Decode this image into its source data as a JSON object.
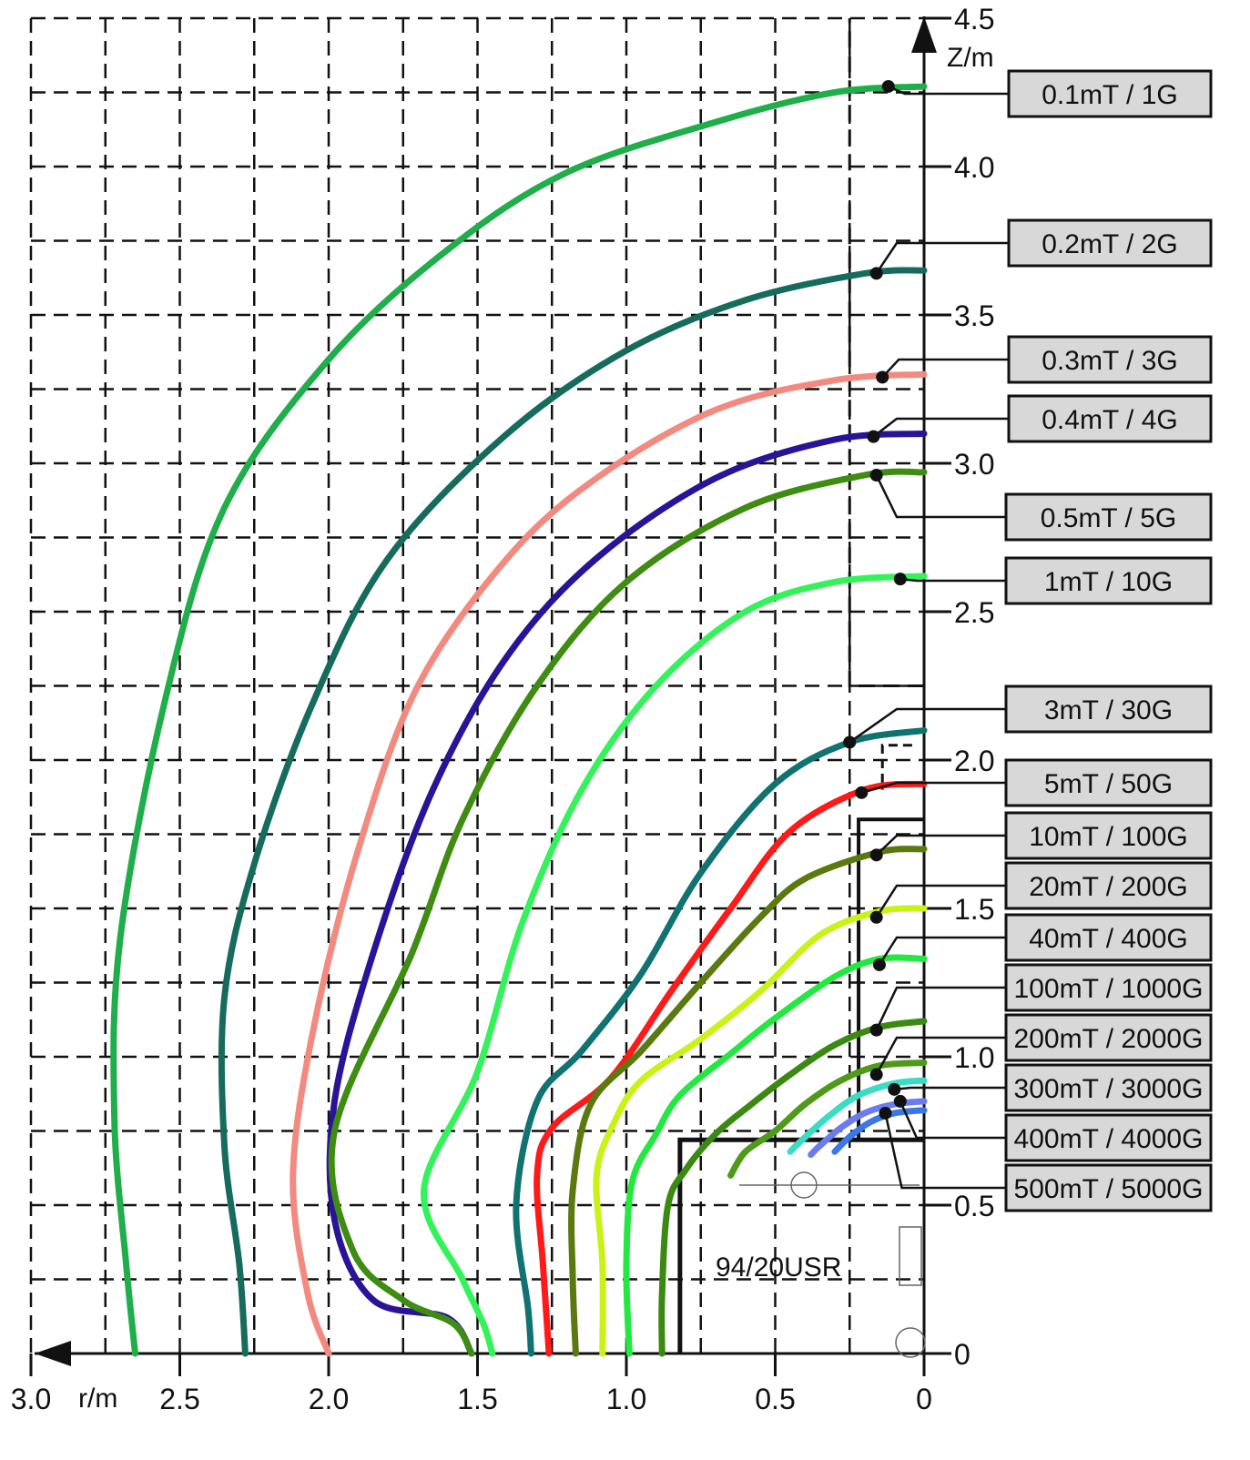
{
  "chart_data": {
    "type": "line",
    "title": "",
    "xlabel": "r/m",
    "ylabel": "Z/m",
    "xlim": [
      3.0,
      0
    ],
    "ylim": [
      0,
      4.5
    ],
    "x_ticks": [
      "3.0",
      "2.5",
      "2.0",
      "1.5",
      "1.0",
      "0.5",
      "0"
    ],
    "y_ticks": [
      "0",
      "0.5",
      "1.0",
      "1.5",
      "2.0",
      "2.5",
      "3.0",
      "3.5",
      "4.0",
      "4.5"
    ],
    "grid": true,
    "magnet_label": "94/20USR",
    "series": [
      {
        "name": "0.1mT / 1G",
        "color": "#1fae4a",
        "points": [
          [
            0,
            4.27
          ],
          [
            0.3,
            4.25
          ],
          [
            0.7,
            4.15
          ],
          [
            1.2,
            3.98
          ],
          [
            1.6,
            3.72
          ],
          [
            2.0,
            3.35
          ],
          [
            2.35,
            2.85
          ],
          [
            2.55,
            2.2
          ],
          [
            2.7,
            1.4
          ],
          [
            2.72,
            0.8
          ],
          [
            2.68,
            0.3
          ],
          [
            2.65,
            0
          ]
        ],
        "marker": [
          0.12,
          4.27
        ]
      },
      {
        "name": "0.2mT / 2G",
        "color": "#156b5c",
        "points": [
          [
            0,
            3.65
          ],
          [
            0.2,
            3.64
          ],
          [
            0.6,
            3.55
          ],
          [
            1.0,
            3.38
          ],
          [
            1.4,
            3.1
          ],
          [
            1.8,
            2.68
          ],
          [
            2.05,
            2.2
          ],
          [
            2.25,
            1.65
          ],
          [
            2.35,
            1.2
          ],
          [
            2.35,
            0.7
          ],
          [
            2.3,
            0.3
          ],
          [
            2.28,
            0
          ]
        ],
        "marker": [
          0.16,
          3.64
        ]
      },
      {
        "name": "0.3mT / 3G",
        "color": "#f38a80",
        "points": [
          [
            0,
            3.3
          ],
          [
            0.3,
            3.28
          ],
          [
            0.7,
            3.18
          ],
          [
            1.1,
            2.95
          ],
          [
            1.4,
            2.68
          ],
          [
            1.7,
            2.25
          ],
          [
            1.9,
            1.7
          ],
          [
            2.05,
            1.1
          ],
          [
            2.12,
            0.6
          ],
          [
            2.07,
            0.2
          ],
          [
            2.0,
            0
          ]
        ],
        "marker": [
          0.14,
          3.29
        ]
      },
      {
        "name": "0.4mT / 4G",
        "color": "#2a1396",
        "points": [
          [
            0,
            3.1
          ],
          [
            0.3,
            3.08
          ],
          [
            0.7,
            2.95
          ],
          [
            1.1,
            2.68
          ],
          [
            1.4,
            2.35
          ],
          [
            1.65,
            1.9
          ],
          [
            1.85,
            1.35
          ],
          [
            1.98,
            0.85
          ],
          [
            1.98,
            0.45
          ],
          [
            1.85,
            0.18
          ],
          [
            1.6,
            0.12
          ],
          [
            1.52,
            0
          ]
        ],
        "marker": [
          0.17,
          3.09
        ]
      },
      {
        "name": "0.5mT / 5G",
        "color": "#3e8c12",
        "points": [
          [
            0,
            2.97
          ],
          [
            0.2,
            2.96
          ],
          [
            0.6,
            2.85
          ],
          [
            1.0,
            2.6
          ],
          [
            1.3,
            2.25
          ],
          [
            1.55,
            1.8
          ],
          [
            1.72,
            1.35
          ],
          [
            1.98,
            0.75
          ],
          [
            1.92,
            0.35
          ],
          [
            1.75,
            0.18
          ],
          [
            1.58,
            0.1
          ],
          [
            1.52,
            0
          ]
        ],
        "marker": [
          0.16,
          2.96
        ]
      },
      {
        "name": "1mT / 10G",
        "color": "#33f25a",
        "points": [
          [
            0,
            2.62
          ],
          [
            0.3,
            2.6
          ],
          [
            0.6,
            2.5
          ],
          [
            0.9,
            2.25
          ],
          [
            1.15,
            1.9
          ],
          [
            1.35,
            1.45
          ],
          [
            1.5,
            0.95
          ],
          [
            1.68,
            0.55
          ],
          [
            1.55,
            0.25
          ],
          [
            1.48,
            0.1
          ],
          [
            1.45,
            0
          ]
        ],
        "marker": [
          0.08,
          2.61
        ]
      },
      {
        "name": "3mT / 30G",
        "color": "#117272",
        "points": [
          [
            0,
            2.1
          ],
          [
            0.25,
            2.06
          ],
          [
            0.5,
            1.92
          ],
          [
            0.75,
            1.62
          ],
          [
            0.95,
            1.28
          ],
          [
            1.15,
            1.02
          ],
          [
            1.3,
            0.85
          ],
          [
            1.37,
            0.5
          ],
          [
            1.33,
            0.15
          ],
          [
            1.32,
            0
          ]
        ],
        "marker": [
          0.25,
          2.06
        ]
      },
      {
        "name": "5mT / 50G",
        "color": "#ff1a1a",
        "points": [
          [
            0,
            1.92
          ],
          [
            0.2,
            1.9
          ],
          [
            0.45,
            1.76
          ],
          [
            0.65,
            1.5
          ],
          [
            0.85,
            1.22
          ],
          [
            1.05,
            0.93
          ],
          [
            1.25,
            0.76
          ],
          [
            1.3,
            0.6
          ],
          [
            1.28,
            0.3
          ],
          [
            1.26,
            0
          ]
        ],
        "marker": [
          0.21,
          1.89
        ]
      },
      {
        "name": "10mT / 100G",
        "color": "#5a7a10",
        "points": [
          [
            0,
            1.7
          ],
          [
            0.15,
            1.69
          ],
          [
            0.4,
            1.6
          ],
          [
            0.55,
            1.47
          ],
          [
            0.75,
            1.25
          ],
          [
            0.95,
            1.02
          ],
          [
            1.12,
            0.84
          ],
          [
            1.18,
            0.55
          ],
          [
            1.18,
            0.25
          ],
          [
            1.17,
            0
          ]
        ],
        "marker": [
          0.16,
          1.68
        ]
      },
      {
        "name": "20mT / 200G",
        "color": "#c8f218",
        "points": [
          [
            0,
            1.5
          ],
          [
            0.15,
            1.49
          ],
          [
            0.35,
            1.41
          ],
          [
            0.55,
            1.22
          ],
          [
            0.75,
            1.06
          ],
          [
            0.95,
            0.92
          ],
          [
            1.04,
            0.78
          ],
          [
            1.1,
            0.6
          ],
          [
            1.08,
            0.3
          ],
          [
            1.08,
            0
          ]
        ],
        "marker": [
          0.16,
          1.47
        ]
      },
      {
        "name": "40mT / 400G",
        "color": "#22e840",
        "points": [
          [
            0,
            1.33
          ],
          [
            0.15,
            1.33
          ],
          [
            0.3,
            1.27
          ],
          [
            0.5,
            1.13
          ],
          [
            0.65,
            1.01
          ],
          [
            0.82,
            0.87
          ],
          [
            0.9,
            0.74
          ],
          [
            0.98,
            0.58
          ],
          [
            1.0,
            0.3
          ],
          [
            0.99,
            0
          ]
        ],
        "marker": [
          0.15,
          1.31
        ]
      },
      {
        "name": "100mT / 1000G",
        "color": "#3a8a12",
        "points": [
          [
            0,
            1.12
          ],
          [
            0.15,
            1.1
          ],
          [
            0.3,
            1.04
          ],
          [
            0.45,
            0.94
          ],
          [
            0.58,
            0.84
          ],
          [
            0.7,
            0.74
          ],
          [
            0.8,
            0.62
          ],
          [
            0.86,
            0.5
          ],
          [
            0.88,
            0.2
          ],
          [
            0.88,
            0
          ]
        ],
        "marker": [
          0.16,
          1.09
        ]
      },
      {
        "name": "200mT / 2000G",
        "color": "#4f9a18",
        "points": [
          [
            0,
            0.98
          ],
          [
            0.15,
            0.97
          ],
          [
            0.28,
            0.92
          ],
          [
            0.4,
            0.84
          ],
          [
            0.5,
            0.75
          ],
          [
            0.6,
            0.68
          ],
          [
            0.65,
            0.6
          ]
        ],
        "marker": [
          0.16,
          0.94
        ]
      },
      {
        "name": "300mT / 3000G",
        "color": "#3bdcc4",
        "points": [
          [
            0,
            0.92
          ],
          [
            0.1,
            0.91
          ],
          [
            0.22,
            0.87
          ],
          [
            0.32,
            0.8
          ],
          [
            0.42,
            0.71
          ],
          [
            0.45,
            0.68
          ]
        ],
        "marker": [
          0.1,
          0.89
        ]
      },
      {
        "name": "400mT / 4000G",
        "color": "#6c7cf0",
        "points": [
          [
            0,
            0.85
          ],
          [
            0.1,
            0.84
          ],
          [
            0.2,
            0.81
          ],
          [
            0.28,
            0.76
          ],
          [
            0.35,
            0.7
          ],
          [
            0.38,
            0.67
          ]
        ],
        "marker": [
          0.08,
          0.85
        ]
      },
      {
        "name": "500mT / 5000G",
        "color": "#3a78e8",
        "points": [
          [
            0,
            0.82
          ],
          [
            0.1,
            0.81
          ],
          [
            0.18,
            0.78
          ],
          [
            0.25,
            0.73
          ],
          [
            0.3,
            0.68
          ]
        ],
        "marker": [
          0.13,
          0.81
        ]
      }
    ],
    "legend_labels": [
      "0.1mT / 1G",
      "0.2mT / 2G",
      "0.3mT / 3G",
      "0.4mT / 4G",
      "0.5mT / 5G",
      "1mT / 10G",
      "3mT / 30G",
      "5mT / 50G",
      "10mT / 100G",
      "20mT / 200G",
      "40mT / 400G",
      "100mT / 1000G",
      "200mT / 2000G",
      "300mT / 3000G",
      "400mT / 4000G",
      "500mT / 5000G"
    ]
  }
}
